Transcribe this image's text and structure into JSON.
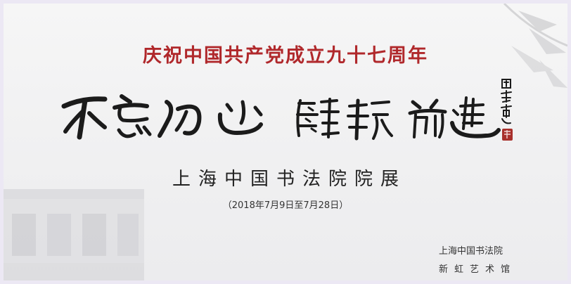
{
  "poster": {
    "headline": "庆祝中国共产党成立九十七周年",
    "calligraphy_text": "不忘初心 继续前进",
    "calligraphy_signature": "周志高",
    "exhibition_title": "上海中国书法院院展",
    "dates": "（2018年7月9日至7月28日）",
    "organizer": "上海中国书法院",
    "venue": "新虹艺术馆"
  },
  "colors": {
    "headline": "#b0282b",
    "ink": "#1b1b1b",
    "seal": "#a8302c"
  }
}
